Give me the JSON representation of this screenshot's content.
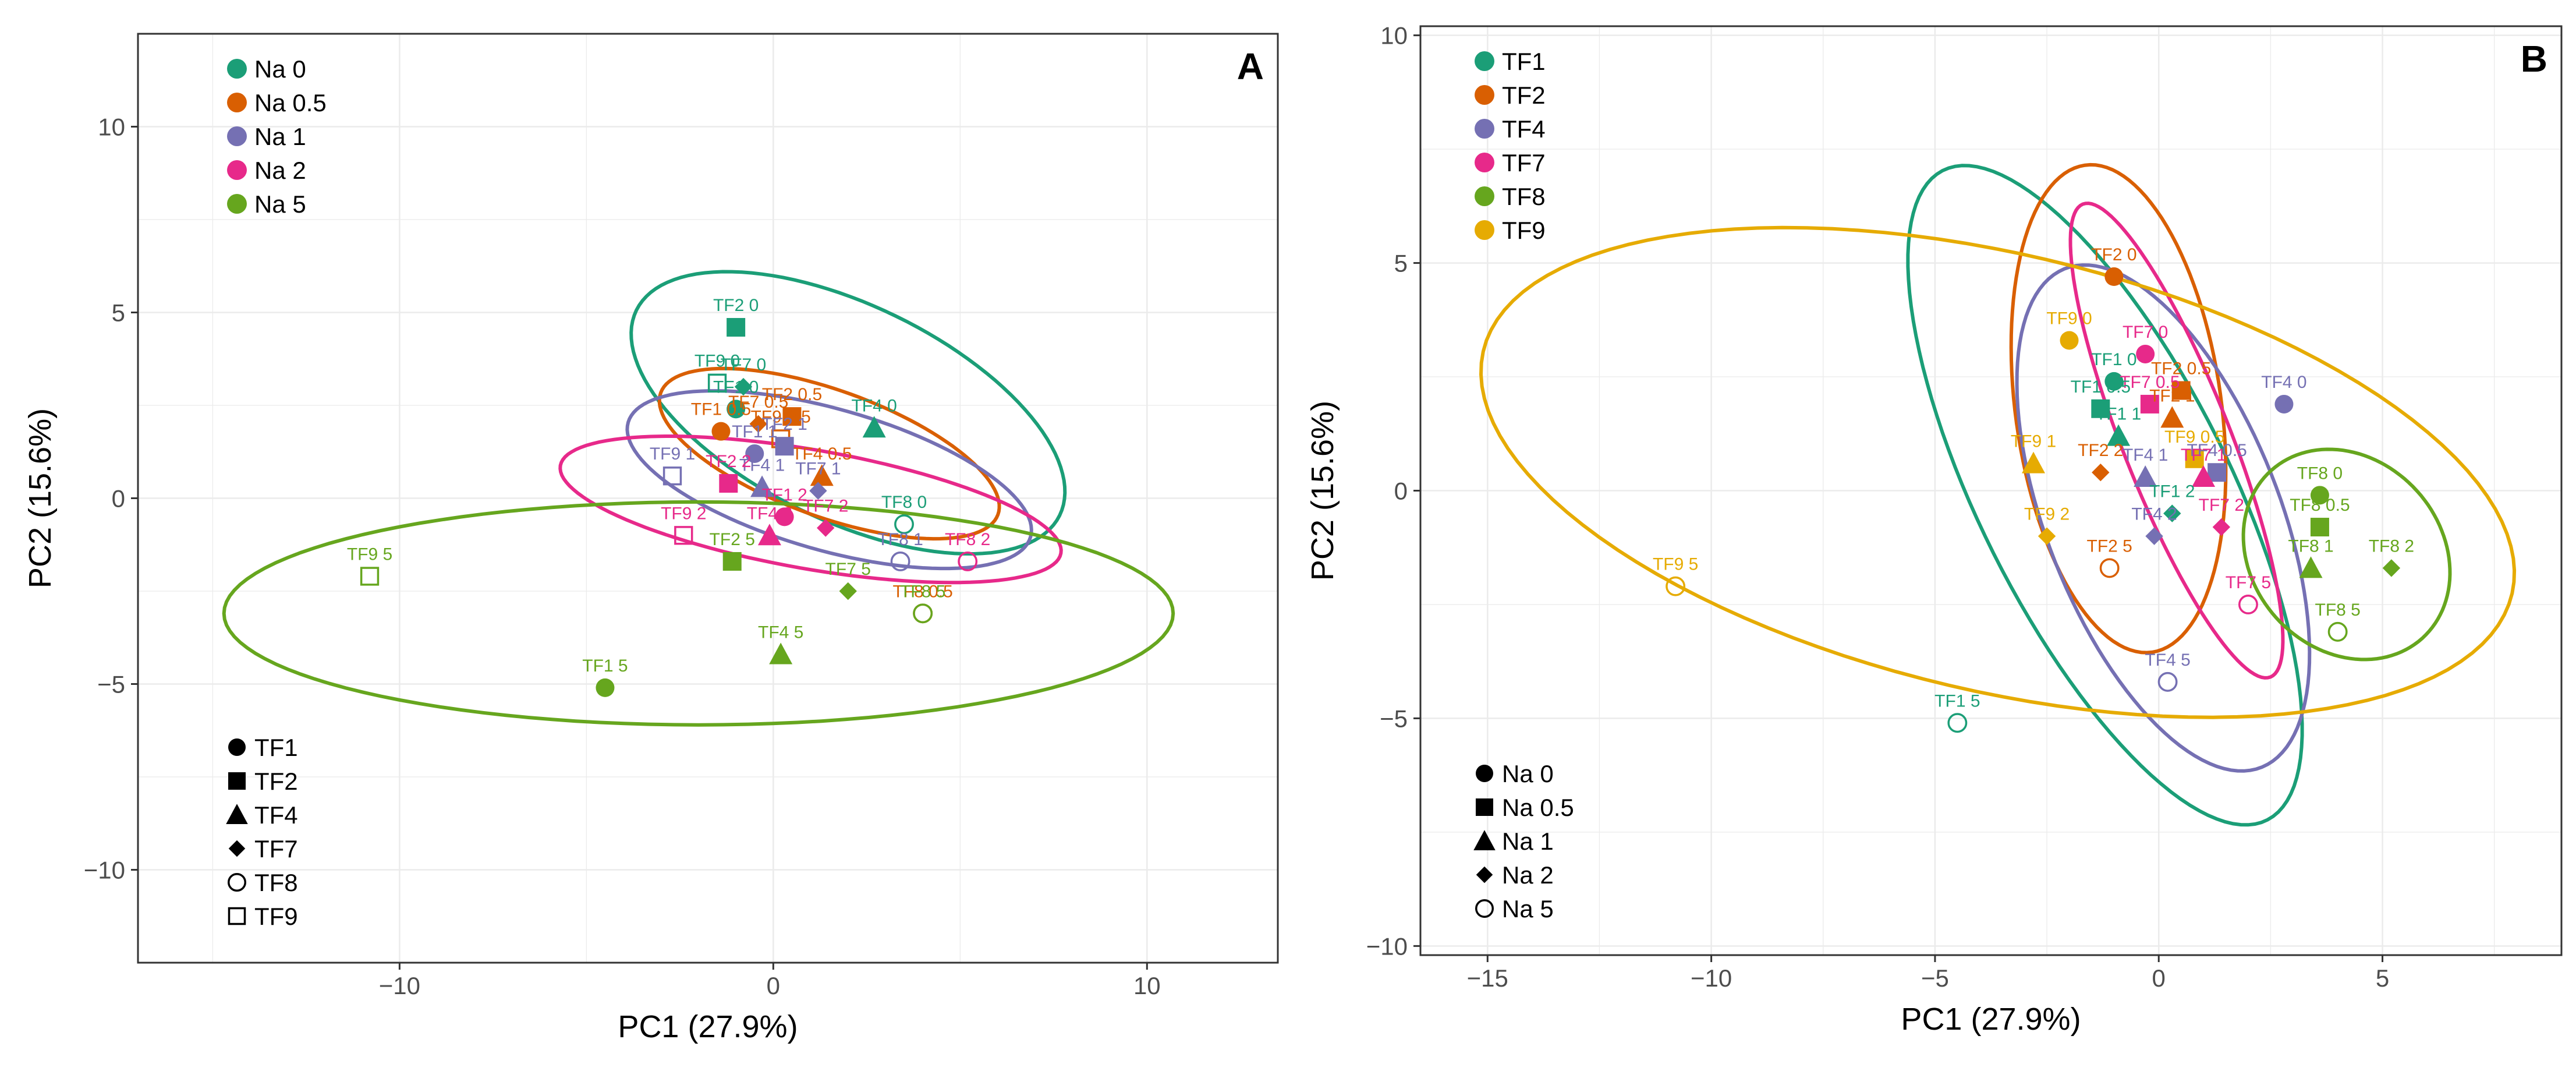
{
  "chart_data": [
    {
      "type": "scatter",
      "panel_label": "A",
      "xlabel": "PC1 (27.9%)",
      "ylabel": "PC2 (15.6%)",
      "xlim": [
        -17,
        13.5
      ],
      "ylim": [
        -12.5,
        12.5
      ],
      "xticks": [
        -10,
        0,
        10
      ],
      "yticks": [
        -10,
        -5,
        0,
        5,
        10
      ],
      "grid": true,
      "color_legend_title": "",
      "color_legend": [
        "Na 0",
        "Na 0.5",
        "Na 1",
        "Na 2",
        "Na 5"
      ],
      "shape_legend": [
        "TF1",
        "TF2",
        "TF4",
        "TF7",
        "TF8",
        "TF9"
      ],
      "ellipses": [
        {
          "group": "Na 0",
          "cx": 2.0,
          "cy": 2.3,
          "rx": 6.3,
          "ry": 2.9,
          "angle": -26
        },
        {
          "group": "Na 0.5",
          "cx": 1.5,
          "cy": 1.2,
          "rx": 4.8,
          "ry": 1.7,
          "angle": -20
        },
        {
          "group": "Na 1",
          "cx": 1.5,
          "cy": 0.5,
          "rx": 5.6,
          "ry": 1.9,
          "angle": -16
        },
        {
          "group": "Na 2",
          "cx": 1.0,
          "cy": -0.3,
          "rx": 6.8,
          "ry": 1.6,
          "angle": -10
        },
        {
          "group": "Na 5",
          "cx": -2.0,
          "cy": -3.1,
          "rx": 12.7,
          "ry": 3.0,
          "angle": 0
        }
      ],
      "points": [
        {
          "label": "TF2 0",
          "shape": "TF2",
          "group": "Na 0",
          "x": -1.0,
          "y": 4.6
        },
        {
          "label": "TF9 0",
          "shape": "TF9",
          "group": "Na 0",
          "x": -1.5,
          "y": 3.1
        },
        {
          "label": "TF7 0",
          "shape": "TF7",
          "group": "Na 0",
          "x": -0.8,
          "y": 3.0
        },
        {
          "label": "TF1 0",
          "shape": "TF1",
          "group": "Na 0",
          "x": -1.0,
          "y": 2.4
        },
        {
          "label": "TF4 0",
          "shape": "TF4",
          "group": "Na 0",
          "x": 2.7,
          "y": 1.9
        },
        {
          "label": "TF8 0",
          "shape": "TF8",
          "group": "Na 0",
          "x": 3.5,
          "y": -0.7
        },
        {
          "label": "TF2 0.5",
          "shape": "TF2",
          "group": "Na 0.5",
          "x": 0.5,
          "y": 2.2
        },
        {
          "label": "TF1 0.5",
          "shape": "TF1",
          "group": "Na 0.5",
          "x": -1.4,
          "y": 1.8
        },
        {
          "label": "TF7 0.5",
          "shape": "TF7",
          "group": "Na 0.5",
          "x": -0.4,
          "y": 2.0
        },
        {
          "label": "TF9 0.5",
          "shape": "TF9",
          "group": "Na 0.5",
          "x": 0.2,
          "y": 1.6
        },
        {
          "label": "TF4 0.5",
          "shape": "TF4",
          "group": "Na 0.5",
          "x": 1.3,
          "y": 0.6
        },
        {
          "label": "TF8 0.5",
          "shape": "TF8",
          "group": "Na 0.5",
          "x": 4.0,
          "y": -3.1
        },
        {
          "label": "TF1 1",
          "shape": "TF1",
          "group": "Na 1",
          "x": -0.5,
          "y": 1.2
        },
        {
          "label": "TF9 1",
          "shape": "TF9",
          "group": "Na 1",
          "x": -2.7,
          "y": 0.6
        },
        {
          "label": "TF4 1",
          "shape": "TF4",
          "group": "Na 1",
          "x": -0.3,
          "y": 0.3
        },
        {
          "label": "TF7 1",
          "shape": "TF7",
          "group": "Na 1",
          "x": 1.2,
          "y": 0.2
        },
        {
          "label": "TF2 1",
          "shape": "TF2",
          "group": "Na 1",
          "x": 0.3,
          "y": 1.4
        },
        {
          "label": "TF8 1",
          "shape": "TF8",
          "group": "Na 1",
          "x": 3.4,
          "y": -1.7
        },
        {
          "label": "TF2 2",
          "shape": "TF2",
          "group": "Na 2",
          "x": -1.2,
          "y": 0.4
        },
        {
          "label": "TF9 2",
          "shape": "TF9",
          "group": "Na 2",
          "x": -2.4,
          "y": -1.0
        },
        {
          "label": "TF4 2",
          "shape": "TF4",
          "group": "Na 2",
          "x": -0.1,
          "y": -1.0
        },
        {
          "label": "TF1 2",
          "shape": "TF1",
          "group": "Na 2",
          "x": 0.3,
          "y": -0.5
        },
        {
          "label": "TF7 2",
          "shape": "TF7",
          "group": "Na 2",
          "x": 1.4,
          "y": -0.8
        },
        {
          "label": "TF8 2",
          "shape": "TF8",
          "group": "Na 2",
          "x": 5.2,
          "y": -1.7
        },
        {
          "label": "TF9 5",
          "shape": "TF9",
          "group": "Na 5",
          "x": -10.8,
          "y": -2.1
        },
        {
          "label": "TF2 5",
          "shape": "TF2",
          "group": "Na 5",
          "x": -1.1,
          "y": -1.7
        },
        {
          "label": "TF7 5",
          "shape": "TF7",
          "group": "Na 5",
          "x": 2.0,
          "y": -2.5
        },
        {
          "label": "TF4 5",
          "shape": "TF4",
          "group": "Na 5",
          "x": 0.2,
          "y": -4.2
        },
        {
          "label": "TF1 5",
          "shape": "TF1",
          "group": "Na 5",
          "x": -4.5,
          "y": -5.1
        },
        {
          "label": "TF8 5",
          "shape": "TF8",
          "group": "Na 5",
          "x": 4.0,
          "y": -3.1
        }
      ]
    },
    {
      "type": "scatter",
      "panel_label": "B",
      "xlabel": "PC1 (27.9%)",
      "ylabel": "PC2 (15.6%)",
      "xlim": [
        -16.5,
        9.0
      ],
      "ylim": [
        -10.2,
        10.2
      ],
      "xticks": [
        -15,
        -10,
        -5,
        0,
        5
      ],
      "yticks": [
        -10,
        -5,
        0,
        5,
        10
      ],
      "grid": true,
      "color_legend": [
        "TF1",
        "TF2",
        "TF4",
        "TF7",
        "TF8",
        "TF9"
      ],
      "shape_legend": [
        "Na 0",
        "Na 0.5",
        "Na 1",
        "Na 2",
        "Na 5"
      ],
      "ellipses": [
        {
          "group": "TF1",
          "cx": -1.2,
          "cy": -0.1,
          "rx": 8.0,
          "ry": 2.8,
          "angle": -63
        },
        {
          "group": "TF2",
          "cx": -0.9,
          "cy": 1.8,
          "rx": 5.4,
          "ry": 2.3,
          "angle": -82
        },
        {
          "group": "TF4",
          "cx": 0.1,
          "cy": -0.6,
          "rx": 5.9,
          "ry": 2.6,
          "angle": -68
        },
        {
          "group": "TF7",
          "cx": 0.4,
          "cy": 1.1,
          "rx": 5.6,
          "ry": 1.2,
          "angle": -68
        },
        {
          "group": "TF8",
          "cx": 4.2,
          "cy": -1.4,
          "rx": 2.5,
          "ry": 2.1,
          "angle": -45
        },
        {
          "group": "TF9",
          "cx": -3.6,
          "cy": 0.4,
          "rx": 11.8,
          "ry": 4.8,
          "angle": -13
        }
      ],
      "points": [
        {
          "label": "TF2 0",
          "shape": "Na 0",
          "group": "TF2",
          "x": -1.0,
          "y": 4.7
        },
        {
          "label": "TF9 0",
          "shape": "Na 0",
          "group": "TF9",
          "x": -2.0,
          "y": 3.3
        },
        {
          "label": "TF7 0",
          "shape": "Na 0",
          "group": "TF7",
          "x": -0.3,
          "y": 3.0
        },
        {
          "label": "TF1 0",
          "shape": "Na 0",
          "group": "TF1",
          "x": -1.0,
          "y": 2.4
        },
        {
          "label": "TF4 0",
          "shape": "Na 0",
          "group": "TF4",
          "x": 2.8,
          "y": 1.9
        },
        {
          "label": "TF8 0",
          "shape": "Na 0",
          "group": "TF8",
          "x": 3.6,
          "y": -0.1
        },
        {
          "label": "TF2 0.5",
          "shape": "Na 0.5",
          "group": "TF2",
          "x": 0.5,
          "y": 2.2
        },
        {
          "label": "TF7 0.5",
          "shape": "Na 0.5",
          "group": "TF7",
          "x": -0.2,
          "y": 1.9
        },
        {
          "label": "TF1 0.5",
          "shape": "Na 0.5",
          "group": "TF1",
          "x": -1.3,
          "y": 1.8
        },
        {
          "label": "TF9 0.5",
          "shape": "Na 0.5",
          "group": "TF9",
          "x": 0.8,
          "y": 0.7
        },
        {
          "label": "TF4 0.5",
          "shape": "Na 0.5",
          "group": "TF4",
          "x": 1.3,
          "y": 0.4
        },
        {
          "label": "TF8 0.5",
          "shape": "Na 0.5",
          "group": "TF8",
          "x": 3.6,
          "y": -0.8
        },
        {
          "label": "TF1 1",
          "shape": "Na 1",
          "group": "TF1",
          "x": -0.9,
          "y": 1.2
        },
        {
          "label": "TF2 1",
          "shape": "Na 1",
          "group": "TF2",
          "x": 0.3,
          "y": 1.6
        },
        {
          "label": "TF9 1",
          "shape": "Na 1",
          "group": "TF9",
          "x": -2.8,
          "y": 0.6
        },
        {
          "label": "TF4 1",
          "shape": "Na 1",
          "group": "TF4",
          "x": -0.3,
          "y": 0.3
        },
        {
          "label": "TF7 1",
          "shape": "Na 1",
          "group": "TF7",
          "x": 1.0,
          "y": 0.3
        },
        {
          "label": "TF8 1",
          "shape": "Na 1",
          "group": "TF8",
          "x": 3.4,
          "y": -1.7
        },
        {
          "label": "TF2 2",
          "shape": "Na 2",
          "group": "TF2",
          "x": -1.3,
          "y": 0.4
        },
        {
          "label": "TF9 2",
          "shape": "Na 2",
          "group": "TF9",
          "x": -2.5,
          "y": -1.0
        },
        {
          "label": "TF1 2",
          "shape": "Na 2",
          "group": "TF1",
          "x": 0.3,
          "y": -0.5
        },
        {
          "label": "TF4 2",
          "shape": "Na 2",
          "group": "TF4",
          "x": -0.1,
          "y": -1.0
        },
        {
          "label": "TF7 2",
          "shape": "Na 2",
          "group": "TF7",
          "x": 1.4,
          "y": -0.8
        },
        {
          "label": "TF8 2",
          "shape": "Na 2",
          "group": "TF8",
          "x": 5.2,
          "y": -1.7
        },
        {
          "label": "TF9 5",
          "shape": "Na 5",
          "group": "TF9",
          "x": -10.8,
          "y": -2.1
        },
        {
          "label": "TF2 5",
          "shape": "Na 5",
          "group": "TF2",
          "x": -1.1,
          "y": -1.7
        },
        {
          "label": "TF7 5",
          "shape": "Na 5",
          "group": "TF7",
          "x": 2.0,
          "y": -2.5
        },
        {
          "label": "TF8 5",
          "shape": "Na 5",
          "group": "TF8",
          "x": 4.0,
          "y": -3.1
        },
        {
          "label": "TF4 5",
          "shape": "Na 5",
          "group": "TF4",
          "x": 0.2,
          "y": -4.2
        },
        {
          "label": "TF1 5",
          "shape": "Na 5",
          "group": "TF1",
          "x": -4.5,
          "y": -5.1
        }
      ]
    }
  ],
  "colors": {
    "Na 0": "#1b9e77",
    "Na 0.5": "#d95f02",
    "Na 1": "#7570b3",
    "Na 2": "#e7298a",
    "Na 5": "#66a61e",
    "TF1": "#1b9e77",
    "TF2": "#d95f02",
    "TF4": "#7570b3",
    "TF7": "#e7298a",
    "TF8": "#66a61e",
    "TF9": "#e6ab02"
  },
  "shape_map": {
    "TF1": "circle",
    "TF2": "square",
    "TF4": "triangle",
    "TF7": "diamond",
    "TF8": "open-circle",
    "TF9": "open-square",
    "Na 0": "circle",
    "Na 0.5": "square",
    "Na 1": "triangle",
    "Na 2": "diamond",
    "Na 5": "open-circle"
  }
}
